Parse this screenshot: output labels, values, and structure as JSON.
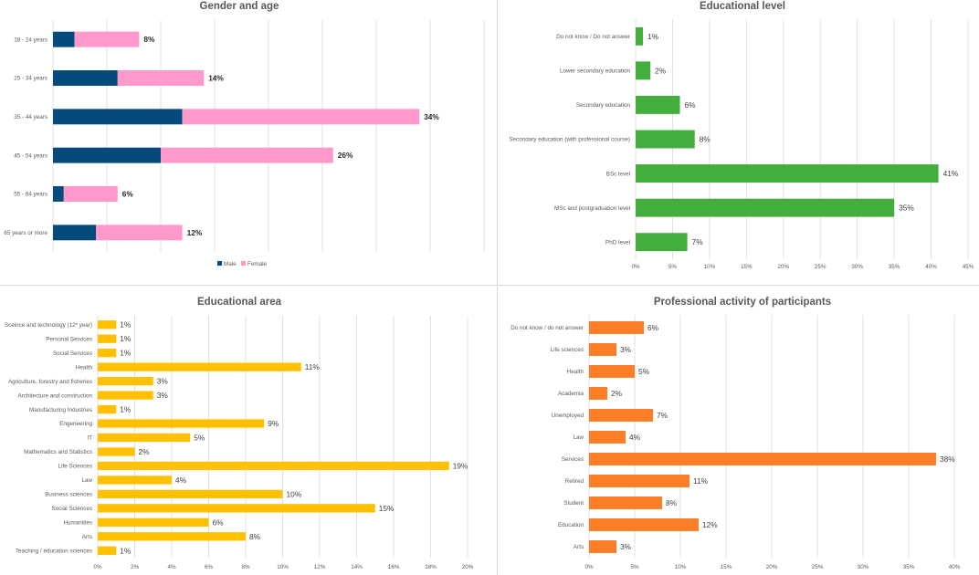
{
  "chart_data": [
    {
      "id": "gender",
      "type": "bar",
      "stacked": true,
      "orientation": "horizontal",
      "title": "Gender and age",
      "categories": [
        "18 - 24 years",
        "25 - 34 years",
        "35 - 44 years",
        "45 - 54 years",
        "55 - 64 years",
        "65 years or more"
      ],
      "series": [
        {
          "name": "Male",
          "color": "#044a7d",
          "values": [
            2.0,
            6.0,
            12.0,
            10.0,
            1.0,
            4.0
          ]
        },
        {
          "name": "Female",
          "color": "#ff99cc",
          "values": [
            6.0,
            8.0,
            22.0,
            16.0,
            5.0,
            8.0
          ]
        }
      ],
      "totals": [
        "8%",
        "14%",
        "34%",
        "26%",
        "6%",
        "12%"
      ],
      "xlim": [
        0,
        40
      ],
      "legend_position": "bottom",
      "grid": true
    },
    {
      "id": "edulevel",
      "type": "bar",
      "orientation": "horizontal",
      "title": "Educational level",
      "color": "#43ad3d",
      "categories": [
        "Do not know / Do not answer",
        "Lower secondary education",
        "Secondary education",
        "Secondary education (with professional course)",
        "BSc level",
        "MSc and postgraduation level",
        "PhD level"
      ],
      "values": [
        1,
        2,
        6,
        8,
        41,
        35,
        7
      ],
      "value_labels": [
        "1%",
        "2%",
        "6%",
        "8%",
        "41%",
        "35%",
        "7%"
      ],
      "xlim": [
        0,
        45
      ],
      "xticks": [
        "0%",
        "5%",
        "10%",
        "15%",
        "20%",
        "25%",
        "30%",
        "35%",
        "40%",
        "45%"
      ],
      "grid": true
    },
    {
      "id": "eduarea",
      "type": "bar",
      "orientation": "horizontal",
      "title": "Educational area",
      "color": "#ffc000",
      "categories": [
        "Sceince and technology (12º year)",
        "Personal Services",
        "Social Services",
        "Health",
        "Agriculture, forestry and fisheries",
        "Architecture and construction",
        "Manufacturing Industries",
        "Engeneering",
        "IT",
        "Mathematics and Statistics",
        "Life Sciences",
        "Law",
        "Business sciences",
        "Social Sciences",
        "Humanities",
        "Arts",
        "Teaching / education sciences"
      ],
      "values": [
        1,
        1,
        1,
        11,
        3,
        3,
        1,
        9,
        5,
        2,
        19,
        4,
        10,
        15,
        6,
        8,
        1
      ],
      "value_labels": [
        "1%",
        "1%",
        "1%",
        "11%",
        "3%",
        "3%",
        "1%",
        "9%",
        "5%",
        "2%",
        "19%",
        "4%",
        "10%",
        "15%",
        "6%",
        "8%",
        "1%"
      ],
      "xlim": [
        0,
        20
      ],
      "xticks": [
        "0%",
        "2%",
        "4%",
        "6%",
        "8%",
        "10%",
        "12%",
        "14%",
        "16%",
        "18%",
        "20%"
      ],
      "grid": true
    },
    {
      "id": "profession",
      "type": "bar",
      "orientation": "horizontal",
      "title": "Professional activity of participants",
      "color": "#fb7d26",
      "categories": [
        "Do not know / do not answer",
        "Life sciences",
        "Health",
        "Academia",
        "Unemployed",
        "Law",
        "Services",
        "Retired",
        "Student",
        "Education",
        "Arts"
      ],
      "values": [
        6,
        3,
        5,
        2,
        7,
        4,
        38,
        11,
        8,
        12,
        3
      ],
      "value_labels": [
        "6%",
        "3%",
        "5%",
        "2%",
        "7%",
        "4%",
        "38%",
        "11%",
        "8%",
        "12%",
        "3%"
      ],
      "xlim": [
        0,
        40
      ],
      "xticks": [
        "0%",
        "5%",
        "10%",
        "15%",
        "20%",
        "25%",
        "30%",
        "35%",
        "40%"
      ],
      "grid": true
    }
  ]
}
